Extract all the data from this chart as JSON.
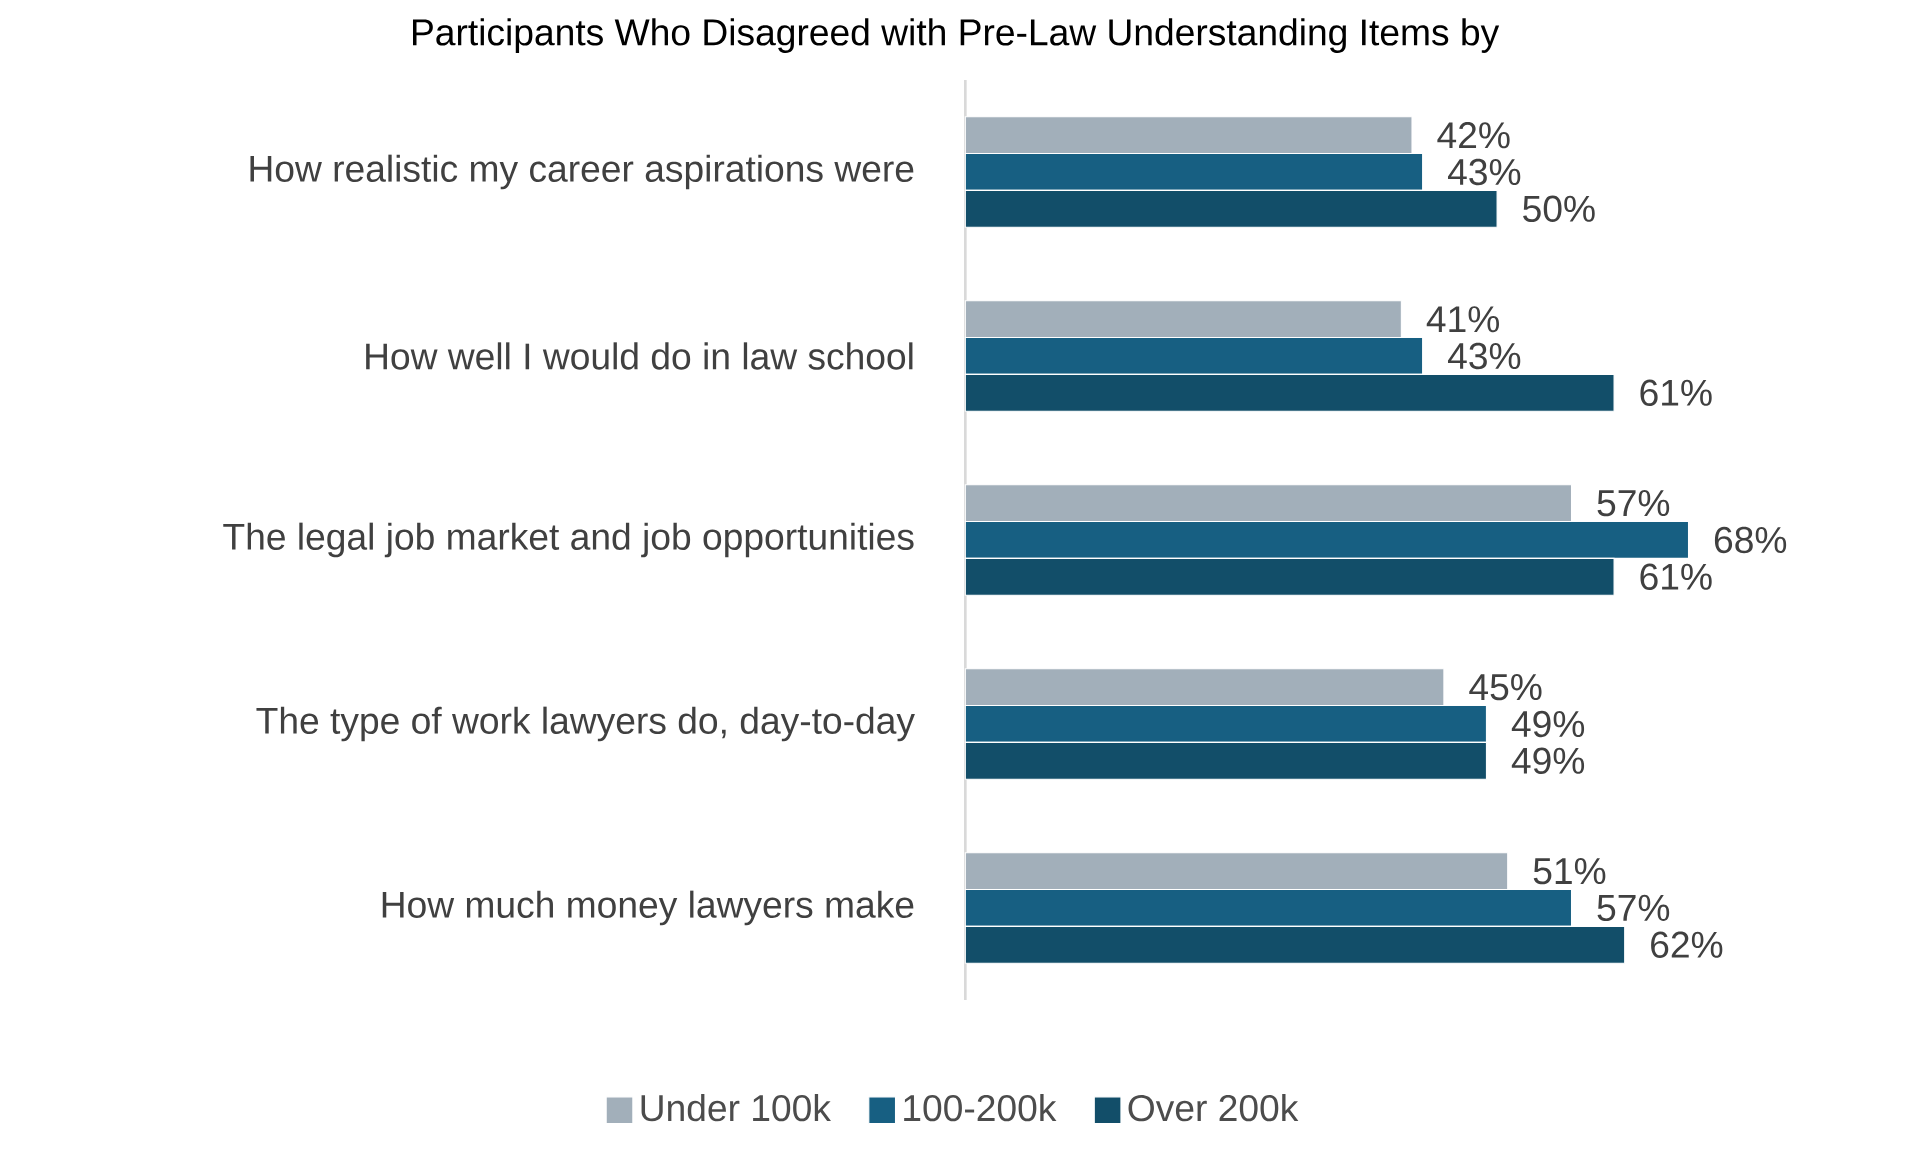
{
  "chart_data": {
    "type": "bar",
    "orientation": "horizontal",
    "title": "Participants Who Disagreed with Pre-Law Understanding Items by",
    "categories": [
      "How realistic my career aspirations were",
      "How well I would do in law school",
      "The legal job market and job opportunities",
      "The type of work lawyers do, day-to-day",
      "How much money lawyers make"
    ],
    "series": [
      {
        "name": "Under 100k",
        "color": "#a2afba",
        "values": [
          42,
          41,
          57,
          45,
          51
        ],
        "value_labels": [
          "42%",
          "41%",
          "57%",
          "45%",
          "51%"
        ]
      },
      {
        "name": "100-200k",
        "color": "#175f82",
        "values": [
          43,
          43,
          68,
          49,
          57
        ],
        "value_labels": [
          "43%",
          "43%",
          "68%",
          "49%",
          "57%"
        ]
      },
      {
        "name": "Over 200k",
        "color": "#124e69",
        "values": [
          50,
          61,
          61,
          49,
          62
        ],
        "value_labels": [
          "50%",
          "61%",
          "61%",
          "49%",
          "62%"
        ]
      }
    ],
    "legend": "bottom"
  }
}
